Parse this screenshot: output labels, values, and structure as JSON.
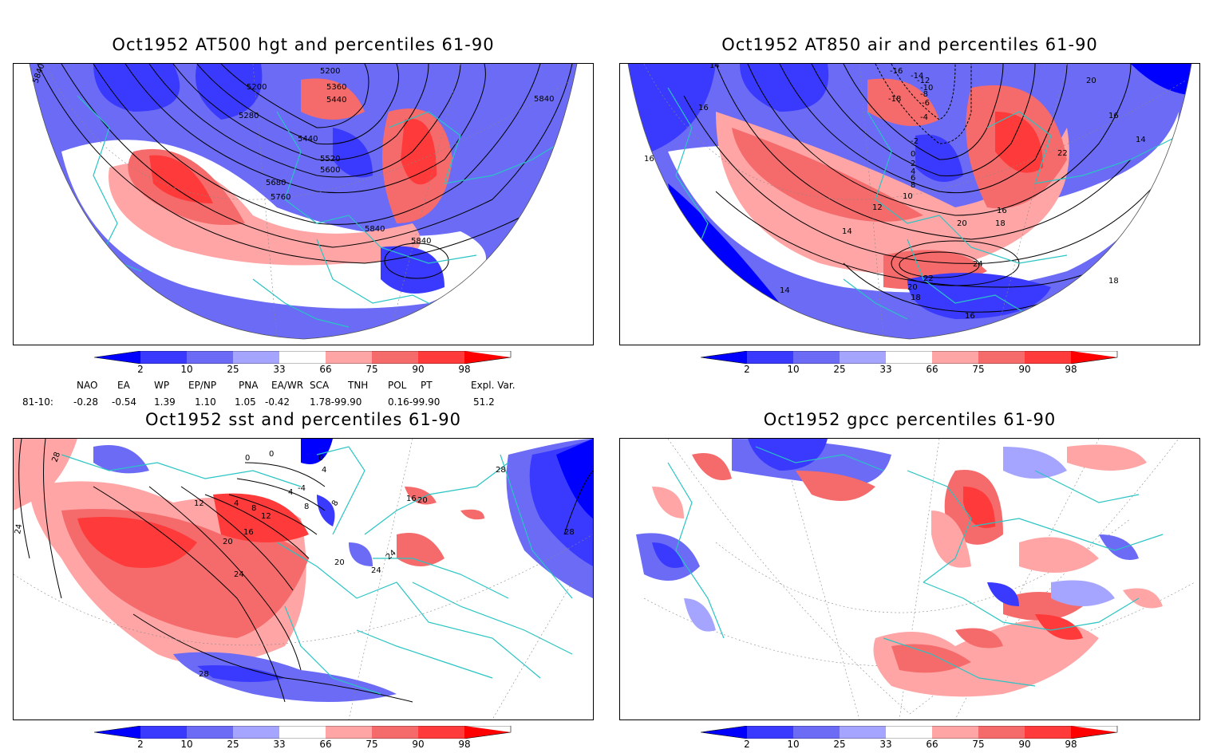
{
  "panels": [
    {
      "title": "Oct1952 AT500 hgt and percentiles 61-90",
      "contour_labels": [
        "5840",
        "5200",
        "5200",
        "5360",
        "5440",
        "5280",
        "5440",
        "5520",
        "5600",
        "5680",
        "5760",
        "5840",
        "5840",
        "5840"
      ]
    },
    {
      "title": "Oct1952 AT850 air and percentiles 61-90",
      "contour_labels": [
        "14",
        "16",
        "-16",
        "-14",
        "-12",
        "-10",
        "-8",
        "-18",
        "-6",
        "20",
        "-4",
        "-2",
        "0",
        "2",
        "4",
        "6",
        "8",
        "16",
        "14",
        "16",
        "22",
        "10",
        "12",
        "14",
        "16",
        "20",
        "18",
        "24",
        "22",
        "20",
        "18",
        "14",
        "16",
        "18"
      ]
    },
    {
      "title": "Oct1952 sst and percentiles 61-90",
      "contour_labels": [
        "28",
        "24",
        "0",
        "0",
        "0",
        "4",
        "12",
        "4",
        "8",
        "12",
        "16",
        "20",
        "24",
        "4",
        "8",
        "-4",
        "8",
        "16",
        "20",
        "20",
        "24",
        "24",
        "28",
        "28",
        "28"
      ]
    },
    {
      "title": "Oct1952 gpcc percentiles 61-90",
      "contour_labels": []
    }
  ],
  "colorbar": {
    "ticks": [
      "2",
      "10",
      "25",
      "33",
      "66",
      "75",
      "90",
      "98"
    ],
    "colors": [
      "#0000ff",
      "#3a3aff",
      "#6b6bf5",
      "#a5a5ff",
      "#ffffff",
      "#ffa5a5",
      "#f56b6b",
      "#ff3a3a",
      "#ff0000"
    ]
  },
  "indices": {
    "headers": [
      "NAO",
      "EA",
      "WP",
      "EP/NP",
      "PNA",
      "EA/WR",
      "SCA",
      "TNH",
      "POL",
      "PT",
      "Expl. Var."
    ],
    "row_label": "81-10:",
    "values": [
      "-0.28",
      "-0.54",
      "1.39",
      "1.10",
      "1.05",
      "-0.42",
      "1.78-99.90",
      "0.16-99.90",
      "51.2"
    ]
  },
  "colors": {
    "coast": "#2ac4c4",
    "red": "#ff3a3a",
    "blue": "#3a3aff"
  }
}
